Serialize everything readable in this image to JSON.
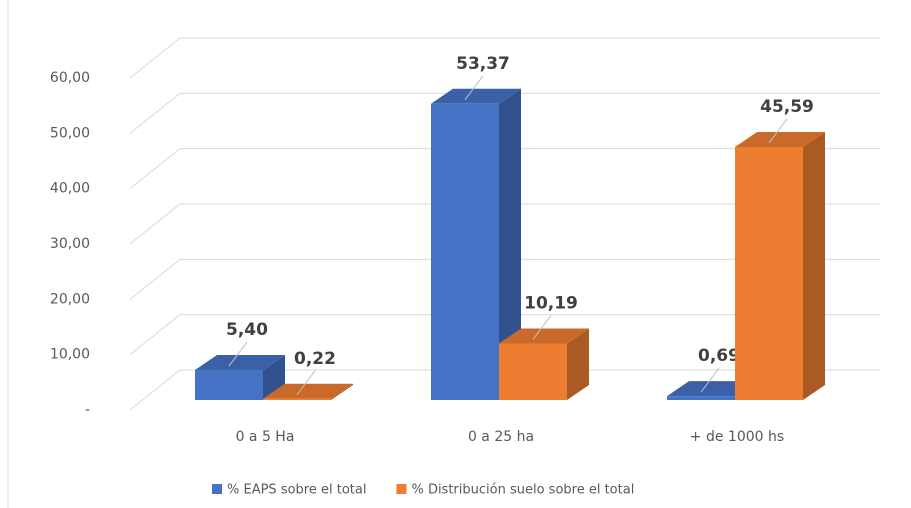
{
  "chart_data": {
    "type": "bar3d",
    "categories": [
      "0 a 5 Ha",
      "0 a 25 ha",
      "+ de 1000 hs"
    ],
    "series": [
      {
        "name": "% EAPS sobre el total",
        "color": "#4472c4",
        "values": [
          5.4,
          53.37,
          0.69
        ],
        "value_labels": [
          "5,40",
          "53,37",
          "0,69"
        ]
      },
      {
        "name": "% Distribución suelo sobre el total",
        "color": "#ed7d31",
        "values": [
          0.22,
          10.19,
          45.59
        ],
        "value_labels": [
          "0,22",
          "10,19",
          "45,59"
        ]
      }
    ],
    "ylim": [
      0,
      60
    ],
    "yticks": [
      {
        "value": 0,
        "label": "-"
      },
      {
        "value": 10,
        "label": "10,00"
      },
      {
        "value": 20,
        "label": "20,00"
      },
      {
        "value": 30,
        "label": "30,00"
      },
      {
        "value": 40,
        "label": "40,00"
      },
      {
        "value": 50,
        "label": "50,00"
      },
      {
        "value": 60,
        "label": "60,00"
      }
    ],
    "grid": true,
    "legend": "bottom"
  }
}
